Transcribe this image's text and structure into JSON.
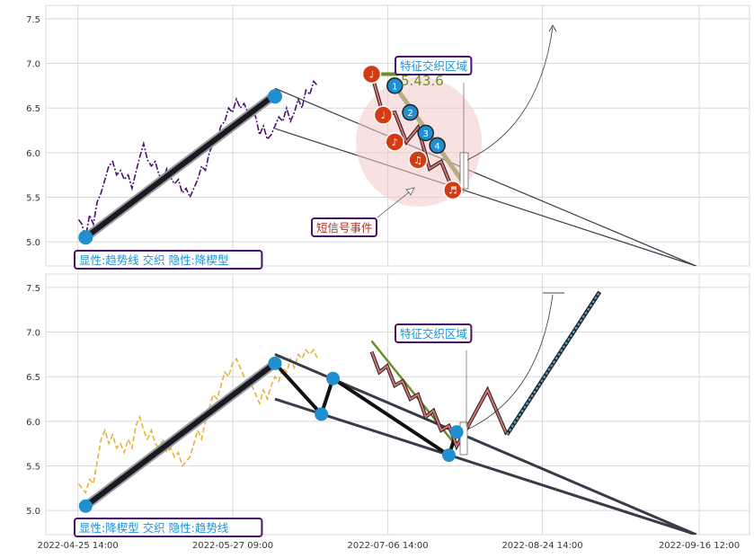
{
  "chart_data": [
    {
      "type": "line",
      "panel": "top",
      "y_ticks": [
        "5.0",
        "5.5",
        "6.0",
        "6.5",
        "7.0",
        "7.5"
      ],
      "ylim": [
        4.73,
        7.65
      ],
      "grid": true,
      "series": [
        {
          "values": [
            [
              0.2,
              5.25
            ],
            [
              1,
              5.2
            ],
            [
              2,
              5.05
            ],
            [
              3,
              5.3
            ],
            [
              4,
              5.2
            ],
            [
              5,
              5.45
            ],
            [
              6,
              5.55
            ],
            [
              7,
              5.7
            ],
            [
              8,
              5.85
            ],
            [
              9,
              5.9
            ],
            [
              10,
              5.75
            ],
            [
              11,
              5.8
            ],
            [
              12,
              5.7
            ],
            [
              13,
              5.75
            ],
            [
              14,
              5.6
            ],
            [
              15,
              5.78
            ],
            [
              16,
              5.95
            ],
            [
              17,
              6.1
            ],
            [
              18,
              5.92
            ],
            [
              19,
              5.85
            ],
            [
              20,
              5.9
            ],
            [
              21,
              5.75
            ],
            [
              22,
              5.7
            ],
            [
              23,
              5.82
            ],
            [
              24,
              5.72
            ],
            [
              25,
              5.65
            ],
            [
              26,
              5.7
            ],
            [
              27,
              5.55
            ],
            [
              28,
              5.6
            ],
            [
              29,
              5.5
            ],
            [
              30,
              5.6
            ],
            [
              31,
              5.7
            ],
            [
              32,
              5.85
            ],
            [
              33,
              5.8
            ],
            [
              34,
              6.0
            ],
            [
              35,
              6.1
            ],
            [
              36,
              6.15
            ],
            [
              37,
              6.3
            ],
            [
              38,
              6.35
            ],
            [
              39,
              6.5
            ],
            [
              40,
              6.45
            ],
            [
              41,
              6.6
            ],
            [
              42,
              6.5
            ],
            [
              43,
              6.55
            ],
            [
              44,
              6.45
            ],
            [
              45,
              6.5
            ],
            [
              46,
              6.4
            ],
            [
              47,
              6.2
            ],
            [
              48,
              6.3
            ],
            [
              49,
              6.15
            ],
            [
              50,
              6.2
            ],
            [
              51,
              6.3
            ],
            [
              52,
              6.4
            ],
            [
              53,
              6.35
            ],
            [
              54,
              6.5
            ],
            [
              55,
              6.35
            ],
            [
              56,
              6.45
            ],
            [
              57,
              6.6
            ],
            [
              58,
              6.5
            ],
            [
              59,
              6.7
            ],
            [
              60,
              6.65
            ],
            [
              61,
              6.8
            ],
            [
              62,
              6.75
            ]
          ]
        }
      ],
      "trend_lines": [
        {
          "from": [
            2,
            5.05
          ],
          "to": [
            51,
            6.65
          ]
        },
        {
          "from": [
            51,
            6.72
          ],
          "to": [
            160,
            4.73
          ]
        },
        {
          "from": [
            51,
            6.27
          ],
          "to": [
            160,
            4.73
          ]
        }
      ],
      "zigzag": [
        [
          76,
          6.88
        ],
        [
          79,
          6.42
        ],
        [
          82,
          6.45
        ],
        [
          85,
          6.12
        ],
        [
          88,
          6.28
        ],
        [
          91,
          5.82
        ],
        [
          94,
          5.9
        ],
        [
          97,
          5.58
        ]
      ],
      "markers_red": [
        {
          "x": 76,
          "y": 6.88,
          "symbol": "♩"
        },
        {
          "x": 79,
          "y": 6.42,
          "symbol": "♩"
        },
        {
          "x": 82,
          "y": 6.12,
          "symbol": "♪"
        },
        {
          "x": 88,
          "y": 5.92,
          "symbol": "♫"
        },
        {
          "x": 97,
          "y": 5.58,
          "symbol": "♬"
        }
      ],
      "markers_blue": [
        {
          "x": 82,
          "y": 6.75,
          "label": "1"
        },
        {
          "x": 86,
          "y": 6.45,
          "label": "2"
        },
        {
          "x": 90,
          "y": 6.22,
          "label": "3"
        },
        {
          "x": 93,
          "y": 6.08,
          "label": "4"
        }
      ],
      "value_label": "5.43.6",
      "annotations": [
        {
          "text": "特征交织区域"
        },
        {
          "text": "短信号事件"
        },
        {
          "text": "显性:趋势线 交织 隐性:降楔型"
        }
      ]
    },
    {
      "type": "line",
      "panel": "bottom",
      "y_ticks": [
        "5.0",
        "5.5",
        "6.0",
        "6.5",
        "7.0",
        "7.5"
      ],
      "ylim": [
        4.73,
        7.65
      ],
      "grid": true,
      "x_ticks": [
        "2022-04-25 14:00",
        "2022-05-27 09:00",
        "2022-07-06 14:00",
        "2022-08-24 14:00",
        "2022-09-16 12:00"
      ],
      "series": [
        {
          "values": [
            [
              0.2,
              5.3
            ],
            [
              1,
              5.25
            ],
            [
              2,
              5.2
            ],
            [
              3,
              5.35
            ],
            [
              4,
              5.3
            ],
            [
              5,
              5.55
            ],
            [
              6,
              5.8
            ],
            [
              7,
              5.9
            ],
            [
              8,
              5.75
            ],
            [
              9,
              5.85
            ],
            [
              10,
              5.7
            ],
            [
              11,
              5.75
            ],
            [
              12,
              5.65
            ],
            [
              13,
              5.8
            ],
            [
              14,
              5.7
            ],
            [
              15,
              5.95
            ],
            [
              16,
              6.05
            ],
            [
              17,
              5.9
            ],
            [
              18,
              5.8
            ],
            [
              19,
              5.9
            ],
            [
              20,
              5.75
            ],
            [
              21,
              5.7
            ],
            [
              22,
              5.8
            ],
            [
              23,
              5.65
            ],
            [
              24,
              5.7
            ],
            [
              25,
              5.6
            ],
            [
              26,
              5.65
            ],
            [
              27,
              5.5
            ],
            [
              28,
              5.55
            ],
            [
              29,
              5.6
            ],
            [
              30,
              5.75
            ],
            [
              31,
              5.9
            ],
            [
              32,
              5.8
            ],
            [
              33,
              6.0
            ],
            [
              34,
              6.15
            ],
            [
              35,
              6.3
            ],
            [
              36,
              6.25
            ],
            [
              37,
              6.4
            ],
            [
              38,
              6.55
            ],
            [
              39,
              6.5
            ],
            [
              40,
              6.65
            ],
            [
              41,
              6.7
            ],
            [
              42,
              6.6
            ],
            [
              43,
              6.5
            ],
            [
              44,
              6.45
            ],
            [
              45,
              6.4
            ],
            [
              46,
              6.3
            ],
            [
              47,
              6.2
            ],
            [
              48,
              6.35
            ],
            [
              49,
              6.25
            ],
            [
              50,
              6.4
            ],
            [
              51,
              6.5
            ],
            [
              52,
              6.45
            ],
            [
              53,
              6.6
            ],
            [
              54,
              6.55
            ],
            [
              55,
              6.7
            ],
            [
              56,
              6.6
            ],
            [
              57,
              6.75
            ],
            [
              58,
              6.7
            ],
            [
              59,
              6.8
            ],
            [
              60,
              6.75
            ],
            [
              61,
              6.8
            ],
            [
              62,
              6.7
            ]
          ]
        }
      ],
      "trend_lines": [
        {
          "from": [
            2,
            5.05
          ],
          "to": [
            51,
            6.65
          ]
        },
        {
          "from": [
            51,
            6.75
          ],
          "to": [
            160,
            4.73
          ]
        },
        {
          "from": [
            51,
            6.25
          ],
          "to": [
            160,
            4.73
          ]
        }
      ],
      "wedge_path": [
        [
          51,
          6.65
        ],
        [
          63,
          6.08
        ],
        [
          66,
          6.48
        ],
        [
          96,
          5.62
        ],
        [
          98,
          5.88
        ]
      ],
      "zigzag_red": [
        [
          76,
          6.78
        ],
        [
          78,
          6.55
        ],
        [
          80,
          6.62
        ],
        [
          82,
          6.4
        ],
        [
          84,
          6.45
        ],
        [
          86,
          6.25
        ],
        [
          88,
          6.3
        ],
        [
          90,
          6.05
        ],
        [
          92,
          6.12
        ],
        [
          94,
          5.9
        ],
        [
          96,
          5.95
        ],
        [
          98,
          5.72
        ],
        [
          101,
          5.95
        ],
        [
          106,
          6.35
        ],
        [
          111,
          5.85
        ]
      ],
      "projection_blue": [
        [
          111,
          5.85
        ],
        [
          135,
          7.45
        ]
      ],
      "markers_blue": [
        {
          "x": 51,
          "y": 6.65
        },
        {
          "x": 63,
          "y": 6.08
        },
        {
          "x": 66,
          "y": 6.48
        },
        {
          "x": 96,
          "y": 5.62
        },
        {
          "x": 98,
          "y": 5.88
        },
        {
          "x": 2,
          "y": 5.05
        }
      ],
      "annotations": [
        {
          "text": "特征交织区域"
        },
        {
          "text": "显性:降楔型 交织 隐性:趋势线"
        }
      ]
    }
  ],
  "colors": {
    "top_series": "#4b0f6e",
    "bottom_series": "#e8b23a",
    "trend_dark": "#3a3a48",
    "red_marker": "#d23c14",
    "blue_marker": "#1f8fd0",
    "green_line": "#6b8f2a",
    "label_border": "#4b0f6e",
    "label_text": "#1f8fd0",
    "short_signal_text": "#b03020",
    "grid": "#d8d8d8"
  }
}
